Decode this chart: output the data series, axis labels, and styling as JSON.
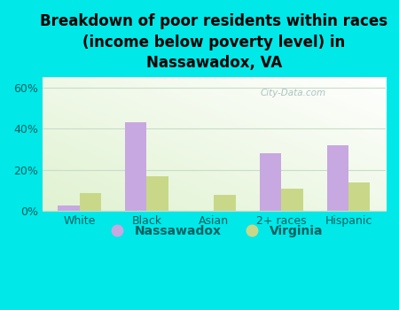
{
  "title": "Breakdown of poor residents within races\n(income below poverty level) in\nNassawadox, VA",
  "categories": [
    "White",
    "Black",
    "Asian",
    "2+ races",
    "Hispanic"
  ],
  "nassawadox": [
    3,
    43,
    0,
    28,
    32
  ],
  "virginia": [
    9,
    17,
    8,
    11,
    14
  ],
  "nassawadox_color": "#c8a8e0",
  "virginia_color": "#c8d888",
  "bg_outer": "#00e8e8",
  "bar_width": 0.32,
  "ylim": [
    0,
    65
  ],
  "yticks": [
    0,
    20,
    40,
    60
  ],
  "ytick_labels": [
    "0%",
    "20%",
    "40%",
    "60%"
  ],
  "title_fontsize": 12,
  "tick_fontsize": 9,
  "legend_fontsize": 10,
  "label_color": "#006060",
  "watermark": "City-Data.com",
  "grid_color": "#c8ddc8"
}
